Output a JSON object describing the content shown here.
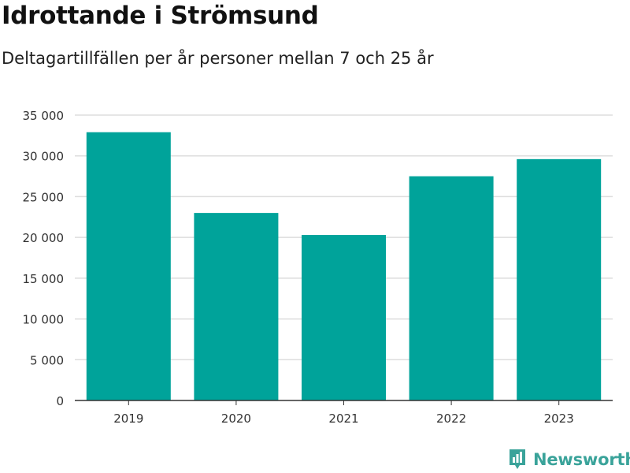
{
  "title": "Idrottande i Strömsund",
  "subtitle": "Deltagartillfällen per år personer mellan 7 och 25 år",
  "brand": {
    "name": "Newsworthy",
    "icon": "newsworthy-logo-icon",
    "color": "#3aa39a"
  },
  "chart_data": {
    "type": "bar",
    "categories": [
      "2019",
      "2020",
      "2021",
      "2022",
      "2023"
    ],
    "values": [
      32900,
      23000,
      20300,
      27500,
      29600
    ],
    "ylim": [
      0,
      35000
    ],
    "yticks": [
      0,
      5000,
      10000,
      15000,
      20000,
      25000,
      30000,
      35000
    ],
    "ytick_labels": [
      "0",
      "5 000",
      "10 000",
      "15 000",
      "20 000",
      "25 000",
      "30 000",
      "35 000"
    ],
    "grid": true,
    "bar_color": "#00a39a"
  }
}
